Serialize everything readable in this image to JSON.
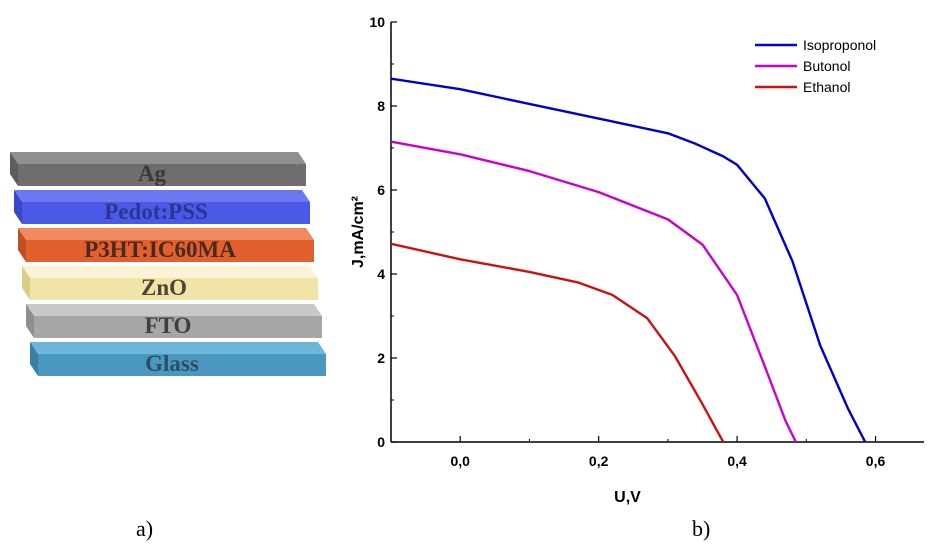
{
  "panel_a": {
    "label": "a)",
    "layers": [
      {
        "name": "Ag",
        "top": "#8f8f8f",
        "front": "#6f6d6d",
        "side": "#5e5c5c",
        "text": "#3a3838"
      },
      {
        "name": "Pedot:PSS",
        "top": "#6b78f0",
        "front": "#4b5ae6",
        "side": "#3a48c8",
        "text": "#2c3590"
      },
      {
        "name": "P3HT:IC60MA",
        "top": "#f08a5e",
        "front": "#e25f2e",
        "side": "#c24f22",
        "text": "#4a2a1e"
      },
      {
        "name": "ZnO",
        "top": "#fbf3d4",
        "front": "#f1e4a8",
        "side": "#dccd8a",
        "text": "#4b4636"
      },
      {
        "name": "FTO",
        "top": "#c8c8c8",
        "front": "#a6a6a6",
        "side": "#8e8e8e",
        "text": "#3f3f3f"
      },
      {
        "name": "Glass",
        "top": "#6cb6d8",
        "front": "#4a98c0",
        "side": "#3b80a4",
        "text": "#2e4e60"
      }
    ]
  },
  "panel_b": {
    "label": "b)"
  },
  "chart_data": {
    "type": "line",
    "xlabel": "U,V",
    "ylabel": "J,mA/cm²",
    "xlim": [
      -0.1,
      0.67
    ],
    "ylim": [
      0,
      10
    ],
    "xticks": [
      0.0,
      0.2,
      0.4,
      0.6
    ],
    "xtick_labels": [
      "0,0",
      "0,2",
      "0,4",
      "0,6"
    ],
    "yticks": [
      0,
      2,
      4,
      6,
      8,
      10
    ],
    "ytick_labels": [
      "0",
      "2",
      "4",
      "6",
      "8",
      "10"
    ],
    "legend_position": "top-right",
    "series": [
      {
        "name": "Isoproponol",
        "color": "#0000cc",
        "x": [
          -0.1,
          0.0,
          0.1,
          0.2,
          0.3,
          0.34,
          0.38,
          0.4,
          0.44,
          0.48,
          0.52,
          0.56,
          0.585
        ],
        "y": [
          8.65,
          8.4,
          8.05,
          7.7,
          7.35,
          7.1,
          6.8,
          6.6,
          5.8,
          4.3,
          2.3,
          0.8,
          0.0
        ]
      },
      {
        "name": "Butonol",
        "color": "#cc00cc",
        "x": [
          -0.1,
          0.0,
          0.1,
          0.2,
          0.3,
          0.35,
          0.4,
          0.44,
          0.47,
          0.485
        ],
        "y": [
          7.15,
          6.85,
          6.45,
          5.95,
          5.3,
          4.7,
          3.5,
          1.8,
          0.5,
          0.0
        ]
      },
      {
        "name": "Ethanol",
        "color": "#cc1111",
        "x": [
          -0.1,
          0.0,
          0.1,
          0.17,
          0.22,
          0.27,
          0.31,
          0.35,
          0.37,
          0.38
        ],
        "y": [
          4.72,
          4.35,
          4.05,
          3.8,
          3.5,
          2.95,
          2.05,
          0.9,
          0.3,
          0.0
        ]
      }
    ]
  }
}
